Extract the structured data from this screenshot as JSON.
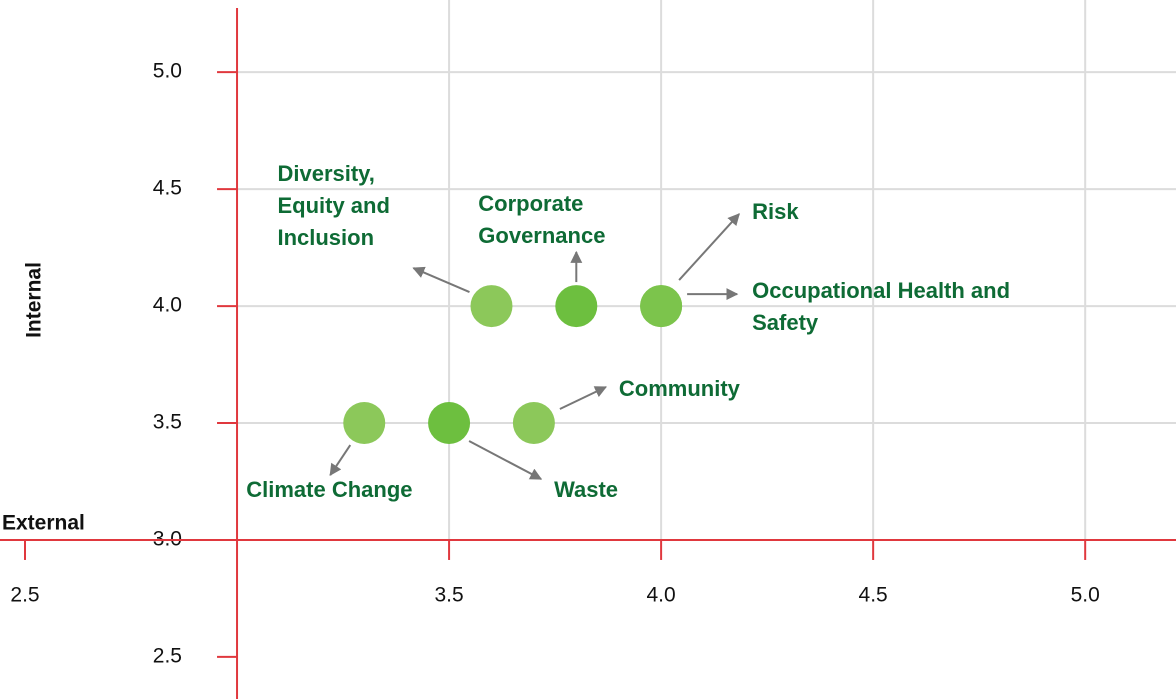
{
  "chart_data": {
    "type": "scatter",
    "x_label": "External",
    "y_label": "Internal",
    "xlim": [
      2.5,
      5.2
    ],
    "ylim": [
      2.35,
      5.3
    ],
    "xticks": [
      2.5,
      3.5,
      {
        "value": 4.0,
        "label": "4.0"
      },
      4.5,
      {
        "value": 5.0,
        "label": "5.0"
      }
    ],
    "yticks": [
      2.5,
      {
        "value": 3.0,
        "label": "3.0"
      },
      3.5,
      {
        "value": 4.0,
        "label": "4.0"
      },
      4.5,
      {
        "value": 5.0,
        "label": "5.0"
      }
    ],
    "axis_color": "#e0383e",
    "grid": true,
    "points": [
      {
        "name": "Diversity, Equity and Inclusion",
        "x": 3.6,
        "y": 4.0,
        "color": "#8cc85a"
      },
      {
        "name": "Corporate Governance",
        "x": 3.8,
        "y": 4.0,
        "color": "#6dbf3f"
      },
      {
        "name": "Risk",
        "x": 4.0,
        "y": 4.0,
        "color": "#7cc44c"
      },
      {
        "name": "Occupational Health and Safety",
        "x": 4.0,
        "y": 4.0,
        "color": "#7cc44c"
      },
      {
        "name": "Climate Change",
        "x": 3.3,
        "y": 3.5,
        "color": "#8cc85a"
      },
      {
        "name": "Waste",
        "x": 3.5,
        "y": 3.5,
        "color": "#6dbf3f"
      },
      {
        "name": "Community",
        "x": 3.7,
        "y": 3.5,
        "color": "#8cc85a"
      }
    ]
  }
}
